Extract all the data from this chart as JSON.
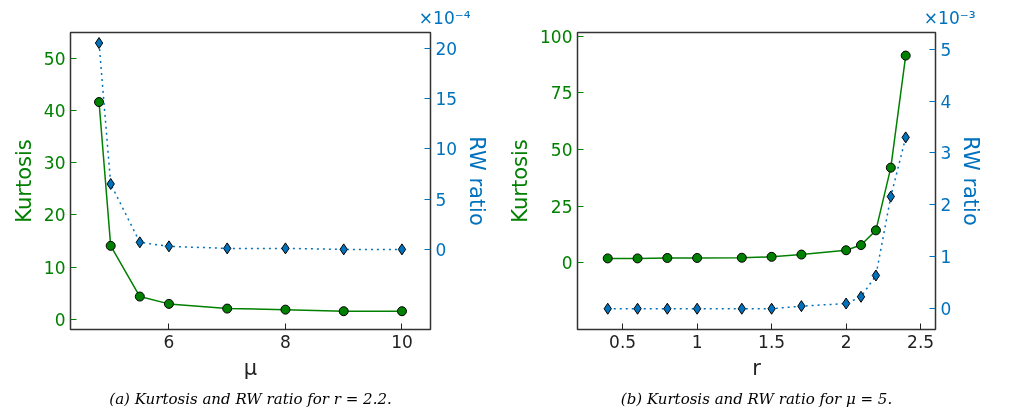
{
  "chart_data": [
    {
      "type": "line",
      "xlabel": "μ",
      "ylabel": "Kurtosis",
      "y2label": "RW ratio",
      "x": [
        4.8,
        5.0,
        5.5,
        6,
        7,
        8,
        9,
        10
      ],
      "series": [
        {
          "color": "#008000",
          "marker": "circle",
          "line_style": "solid",
          "values": [
            41.6,
            14.1,
            4.4,
            3.0,
            2.1,
            1.9,
            1.6,
            1.6
          ]
        },
        {
          "color": "#0072bd",
          "marker": "diamond",
          "line_style": "dotted",
          "axis": "y2",
          "values": [
            20.5,
            6.5,
            0.7,
            0.3,
            0.1,
            0.1,
            0,
            0
          ]
        }
      ],
      "xlim": [
        4.31,
        10.49
      ],
      "xticks": [
        6,
        8,
        10
      ],
      "ylim": [
        -1.9,
        54.9
      ],
      "yticks": [
        0,
        10,
        20,
        30,
        40,
        50
      ],
      "y2lim": [
        -7.96,
        21.55
      ],
      "y2ticks": [
        0,
        5,
        10,
        15,
        20
      ],
      "grid": false,
      "annotations": [
        "×10⁻⁴",
        "(a) Kurtosis and RW ratio for r = 2.2."
      ]
    },
    {
      "type": "line",
      "xlabel": "r",
      "ylabel": "Kurtosis",
      "y2label": "RW ratio",
      "x": [
        0.4,
        0.6,
        0.8,
        1.0,
        1.3,
        1.5,
        1.7,
        2.0,
        2.1,
        2.2,
        2.3,
        2.4
      ],
      "series": [
        {
          "color": "#008000",
          "marker": "circle",
          "line_style": "solid",
          "values": [
            1.9,
            1.9,
            2.1,
            2.1,
            2.2,
            2.6,
            3.6,
            5.5,
            7.8,
            14.3,
            42,
            91.5
          ]
        },
        {
          "color": "#0072bd",
          "marker": "diamond",
          "line_style": "dotted",
          "axis": "y2",
          "values": [
            0,
            0,
            0,
            0,
            0,
            0,
            0.05,
            0.1,
            0.23,
            0.64,
            2.16,
            3.3
          ]
        }
      ],
      "xlim": [
        0.197,
        2.6
      ],
      "xticks": [
        0.5,
        1,
        1.5,
        2,
        2.5
      ],
      "ylim": [
        -29.5,
        101.7
      ],
      "yticks": [
        0,
        25,
        50,
        75,
        100
      ],
      "y2lim": [
        -0.4,
        5.32
      ],
      "y2ticks": [
        0,
        1,
        2,
        3,
        4,
        5
      ],
      "grid": false,
      "annotations": [
        "×10⁻³",
        "(b) Kurtosis and RW ratio for μ = 5."
      ]
    }
  ]
}
